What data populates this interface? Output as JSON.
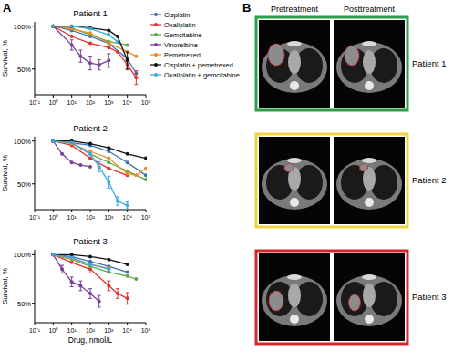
{
  "chart_data": [
    {
      "type": "line",
      "title": "Patient 1",
      "ylabel": "Survival, %",
      "log": "x",
      "marker": "circle",
      "legend": "right",
      "xlim": [
        0.1,
        100000
      ],
      "xticks": [
        {
          "value": 0.1,
          "label": "10⁻¹"
        },
        {
          "value": 1,
          "label": "10⁰"
        },
        {
          "value": 10,
          "label": "10¹"
        },
        {
          "value": 100,
          "label": "10²"
        },
        {
          "value": 1000,
          "label": "10³"
        },
        {
          "value": 10000,
          "label": "10⁴"
        },
        {
          "value": 100000,
          "label": "10⁵"
        }
      ],
      "ylim": [
        20,
        105
      ],
      "yticks": [
        {
          "value": 50,
          "label": "50%"
        },
        {
          "value": 100,
          "label": "100%"
        }
      ],
      "series": [
        {
          "name": "Cisplatin",
          "color": "#3a6fb0",
          "x": [
            1,
            10,
            100,
            1000,
            10000,
            30000
          ],
          "values": [
            100,
            95,
            88,
            80,
            62,
            45
          ]
        },
        {
          "name": "Oxaliplatin",
          "color": "#e0312c",
          "x": [
            1,
            10,
            100,
            1000,
            3000,
            10000,
            30000
          ],
          "values": [
            100,
            88,
            80,
            75,
            70,
            55,
            40
          ],
          "errors": [
            null,
            null,
            null,
            null,
            null,
            6,
            8
          ]
        },
        {
          "name": "Gemcitabine",
          "color": "#5aa845",
          "x": [
            1,
            10,
            100,
            1000,
            10000
          ],
          "values": [
            100,
            98,
            90,
            82,
            78
          ]
        },
        {
          "name": "Vinorelbine",
          "color": "#7b3f9a",
          "x": [
            1,
            10,
            30,
            100,
            300,
            1000
          ],
          "values": [
            100,
            78,
            65,
            57,
            55,
            60
          ],
          "errors": [
            null,
            6,
            7,
            8,
            6,
            8
          ]
        },
        {
          "name": "Pemetrexed",
          "color": "#f08a24",
          "x": [
            1,
            10,
            100,
            1000,
            10000,
            30000
          ],
          "values": [
            100,
            97,
            92,
            80,
            70,
            65
          ]
        },
        {
          "name": "Cisplatin + pemetrexed",
          "color": "#111111",
          "x": [
            1,
            10,
            100,
            1000,
            3000,
            10000
          ],
          "values": [
            100,
            100,
            98,
            95,
            88,
            60
          ],
          "errors": [
            null,
            null,
            null,
            null,
            null,
            10
          ]
        },
        {
          "name": "Oxaliplatin + gemcitabine",
          "color": "#39a9e0",
          "x": [
            1,
            10,
            100,
            1000,
            3000
          ],
          "values": [
            100,
            100,
            97,
            90,
            82
          ]
        }
      ]
    },
    {
      "type": "line",
      "title": "Patient 2",
      "ylabel": "Survival, %",
      "log": "x",
      "marker": "circle",
      "xlim": [
        0.1,
        100000
      ],
      "xticks": [
        {
          "value": 0.1,
          "label": "10⁻¹"
        },
        {
          "value": 1,
          "label": "10⁰"
        },
        {
          "value": 10,
          "label": "10¹"
        },
        {
          "value": 100,
          "label": "10²"
        },
        {
          "value": 1000,
          "label": "10³"
        },
        {
          "value": 10000,
          "label": "10⁴"
        },
        {
          "value": 100000,
          "label": "10⁵"
        }
      ],
      "ylim": [
        20,
        105
      ],
      "yticks": [
        {
          "value": 50,
          "label": "50%"
        },
        {
          "value": 100,
          "label": "100%"
        }
      ],
      "series": [
        {
          "color": "#3a6fb0",
          "x": [
            1,
            10,
            100,
            1000,
            10000,
            100000
          ],
          "values": [
            100,
            98,
            95,
            88,
            75,
            60
          ]
        },
        {
          "color": "#e0312c",
          "x": [
            1,
            10,
            100,
            1000,
            10000
          ],
          "values": [
            100,
            95,
            80,
            68,
            60
          ]
        },
        {
          "color": "#5aa845",
          "x": [
            1,
            10,
            100,
            1000,
            10000,
            100000
          ],
          "values": [
            100,
            98,
            85,
            75,
            65,
            55
          ]
        },
        {
          "color": "#7b3f9a",
          "x": [
            1,
            3,
            10,
            30,
            100
          ],
          "values": [
            100,
            85,
            75,
            72,
            70
          ]
        },
        {
          "color": "#f08a24",
          "x": [
            1,
            10,
            100,
            1000,
            10000,
            30000,
            100000
          ],
          "values": [
            100,
            97,
            88,
            80,
            62,
            60,
            68
          ]
        },
        {
          "color": "#111111",
          "x": [
            1,
            10,
            100,
            1000,
            10000,
            100000
          ],
          "values": [
            100,
            100,
            97,
            92,
            85,
            80
          ]
        },
        {
          "color": "#39a9e0",
          "x": [
            1,
            10,
            100,
            300,
            1000,
            3000,
            10000
          ],
          "values": [
            100,
            98,
            85,
            70,
            52,
            30,
            25
          ],
          "errors": [
            null,
            null,
            null,
            6,
            7,
            5,
            4
          ]
        }
      ]
    },
    {
      "type": "line",
      "title": "Patient 3",
      "ylabel": "Survival, %",
      "xlabel": "Drug, nmol/L",
      "log": "x",
      "marker": "circle",
      "xlim": [
        0.1,
        100000
      ],
      "xticks": [
        {
          "value": 0.1,
          "label": "10⁻¹"
        },
        {
          "value": 1,
          "label": "10⁰"
        },
        {
          "value": 10,
          "label": "10¹"
        },
        {
          "value": 100,
          "label": "10²"
        },
        {
          "value": 1000,
          "label": "10³"
        },
        {
          "value": 10000,
          "label": "10⁴"
        },
        {
          "value": 100000,
          "label": "10⁵"
        }
      ],
      "ylim": [
        30,
        105
      ],
      "yticks": [
        {
          "value": 50,
          "label": "50%"
        },
        {
          "value": 100,
          "label": "100%"
        }
      ],
      "series": [
        {
          "color": "#3a6fb0",
          "x": [
            1,
            10,
            100,
            1000,
            10000
          ],
          "values": [
            100,
            98,
            93,
            88,
            82
          ]
        },
        {
          "color": "#e0312c",
          "x": [
            1,
            10,
            100,
            1000,
            3000,
            10000
          ],
          "values": [
            100,
            92,
            85,
            68,
            60,
            55
          ],
          "errors": [
            null,
            null,
            4,
            5,
            5,
            6
          ]
        },
        {
          "color": "#5aa845",
          "x": [
            1,
            10,
            100,
            1000,
            10000,
            30000
          ],
          "values": [
            100,
            95,
            88,
            82,
            78,
            75
          ]
        },
        {
          "color": "#7b3f9a",
          "x": [
            1,
            3,
            10,
            30,
            100,
            300
          ],
          "values": [
            100,
            85,
            72,
            68,
            60,
            52
          ],
          "errors": [
            null,
            4,
            5,
            5,
            5,
            6
          ]
        },
        {
          "color": "#f08a24",
          "x": [
            1,
            10,
            100,
            1000
          ],
          "values": [
            100,
            96,
            90,
            86
          ]
        },
        {
          "color": "#111111",
          "x": [
            1,
            10,
            100,
            1000,
            10000
          ],
          "values": [
            100,
            100,
            98,
            95,
            90
          ]
        },
        {
          "color": "#39a9e0",
          "x": [
            1,
            10,
            100,
            1000
          ],
          "values": [
            100,
            97,
            90,
            85
          ]
        }
      ]
    }
  ],
  "panel_labels": [
    "A",
    "B"
  ],
  "ct_panel": {
    "column_titles": [
      "Pretreatment",
      "Posttreatment"
    ],
    "rows": [
      {
        "label": "Patient 1",
        "color": "#2e9e4a"
      },
      {
        "label": "Patient 2",
        "color": "#f2d23c"
      },
      {
        "label": "Patient 3",
        "color": "#d6262b"
      }
    ]
  }
}
